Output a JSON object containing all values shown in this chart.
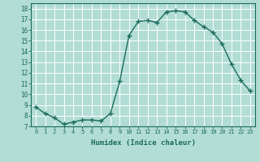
{
  "x": [
    0,
    1,
    2,
    3,
    4,
    5,
    6,
    7,
    8,
    9,
    10,
    11,
    12,
    13,
    14,
    15,
    16,
    17,
    18,
    19,
    20,
    21,
    22,
    23
  ],
  "y": [
    8.8,
    8.2,
    7.8,
    7.2,
    7.4,
    7.6,
    7.6,
    7.5,
    8.2,
    11.2,
    15.5,
    16.8,
    16.9,
    16.7,
    17.7,
    17.8,
    17.7,
    16.9,
    16.3,
    15.8,
    14.7,
    12.8,
    11.3,
    10.3
  ],
  "line_color": "#1a6b5e",
  "bg_color": "#b2ddd4",
  "grid_color": "#ffffff",
  "xlabel": "Humidex (Indice chaleur)",
  "xlim": [
    -0.5,
    23.5
  ],
  "ylim": [
    7,
    18.5
  ],
  "yticks": [
    7,
    8,
    9,
    10,
    11,
    12,
    13,
    14,
    15,
    16,
    17,
    18
  ],
  "xticks": [
    0,
    1,
    2,
    3,
    4,
    5,
    6,
    7,
    8,
    9,
    10,
    11,
    12,
    13,
    14,
    15,
    16,
    17,
    18,
    19,
    20,
    21,
    22,
    23
  ],
  "xtick_labels": [
    "0",
    "1",
    "2",
    "3",
    "4",
    "5",
    "6",
    "7",
    "8",
    "9",
    "10",
    "11",
    "12",
    "13",
    "14",
    "15",
    "16",
    "17",
    "18",
    "19",
    "20",
    "21",
    "22",
    "23"
  ],
  "marker": "+",
  "marker_size": 4,
  "linewidth": 1.0
}
